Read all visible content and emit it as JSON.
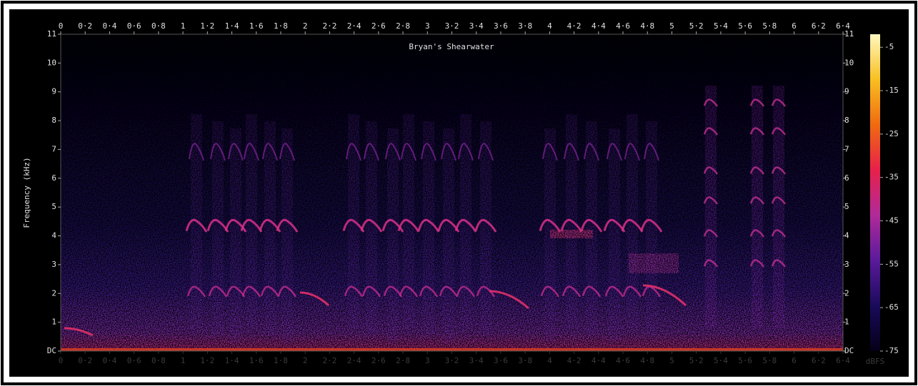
{
  "chart_data": {
    "type": "spectrogram",
    "title": "Bryan's Shearwater",
    "y_label": "Frequency (kHz)",
    "colorbar_label": "dBFS",
    "xlim": [
      0,
      6.4
    ],
    "xticks": [
      0,
      {
        "value": 0.2,
        "label": "0·2"
      },
      {
        "value": 0.4,
        "label": "0·4"
      },
      {
        "value": 0.6,
        "label": "0·6"
      },
      {
        "value": 0.8,
        "label": "0·8"
      },
      1,
      {
        "value": 1.2,
        "label": "1·2"
      },
      {
        "value": 1.4,
        "label": "1·4"
      },
      {
        "value": 1.6,
        "label": "1·6"
      },
      {
        "value": 1.8,
        "label": "1·8"
      },
      2,
      {
        "value": 2.2,
        "label": "2·2"
      },
      {
        "value": 2.4,
        "label": "2·4"
      },
      {
        "value": 2.6,
        "label": "2·6"
      },
      {
        "value": 2.8,
        "label": "2·8"
      },
      3,
      {
        "value": 3.2,
        "label": "3·2"
      },
      {
        "value": 3.4,
        "label": "3·4"
      },
      {
        "value": 3.6,
        "label": "3·6"
      },
      {
        "value": 3.8,
        "label": "3·8"
      },
      4,
      {
        "value": 4.2,
        "label": "4·2"
      },
      {
        "value": 4.4,
        "label": "4·4"
      },
      {
        "value": 4.6,
        "label": "4·6"
      },
      {
        "value": 4.8,
        "label": "4·8"
      },
      5,
      {
        "value": 5.2,
        "label": "5·2"
      },
      {
        "value": 5.4,
        "label": "5·4"
      },
      {
        "value": 5.6,
        "label": "5·6"
      },
      {
        "value": 5.8,
        "label": "5·8"
      },
      6,
      {
        "value": 6.2,
        "label": "6·2"
      },
      {
        "value": 6.4,
        "label": "6·4"
      }
    ],
    "ylim": [
      0,
      11
    ],
    "yticks": [
      {
        "value": 0,
        "label": "DC"
      },
      1,
      2,
      3,
      4,
      5,
      6,
      7,
      8,
      9,
      10,
      11
    ],
    "clim": [
      -75,
      -2
    ],
    "cticks": [
      -5,
      -15,
      -25,
      -35,
      -45,
      -55,
      -65,
      -75
    ],
    "colormap": [
      "#050018",
      "#1a0a5a",
      "#5a1a9a",
      "#b02a9a",
      "#e8204a",
      "#f06a10",
      "#f8c020",
      "#fff8c0"
    ]
  }
}
